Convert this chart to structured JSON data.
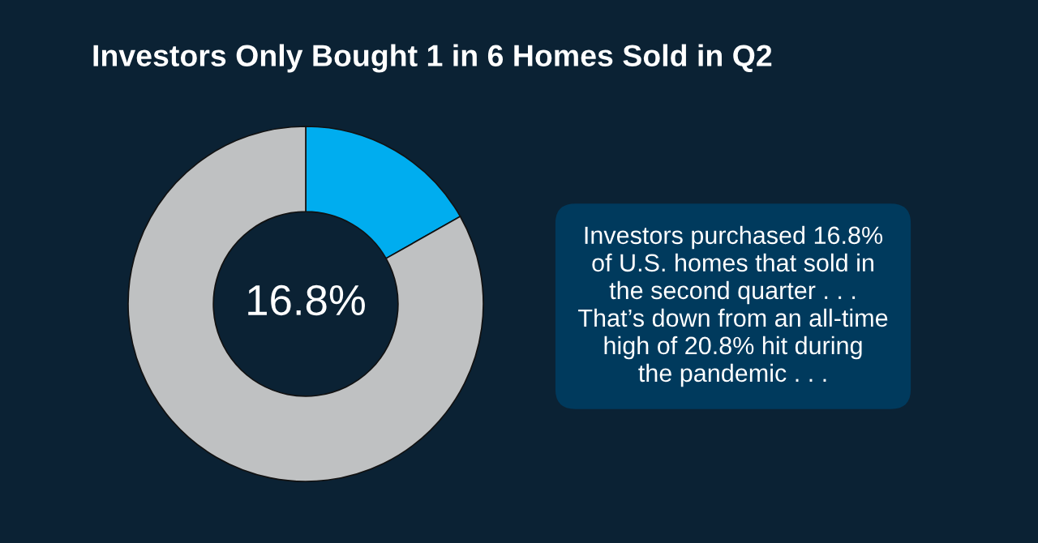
{
  "chart_data": {
    "type": "donut",
    "title": "Investors Only Bought 1 in 6 Homes Sold in Q2",
    "categories": [
      null,
      null
    ],
    "values": [
      16.8,
      83.2
    ],
    "colors": [
      "#00adef",
      "#bfc1c2"
    ],
    "annotations": [
      "16.8%",
      "Investors purchased 16.8%\nof U.S. homes that sold in\nthe second quarter . . .\nThat’s down from an all-time\nhigh of 20.8% hit during\nthe pandemic . . ."
    ]
  }
}
